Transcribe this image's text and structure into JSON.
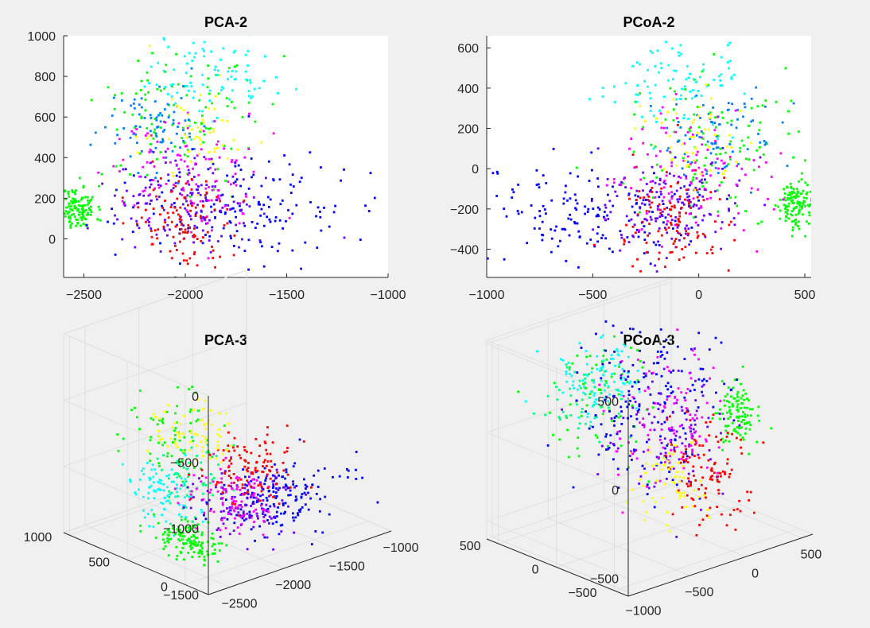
{
  "colors": {
    "figure_background": "#f0f0f0",
    "axes_background": "#ffffff",
    "axis": "#262626",
    "grid3d": "#dcdcdc",
    "palette": [
      "#00ff00",
      "#00ffff",
      "#0000ff",
      "#6600ff",
      "#ff00ff",
      "#ff0000",
      "#ffff00",
      "#00ff80",
      "#0080ff"
    ]
  },
  "chart_data": [
    {
      "id": "pca2",
      "type": "scatter",
      "title": "PCA-2",
      "xlim": [
        -2600,
        -1000
      ],
      "ylim": [
        -190,
        1000
      ],
      "xticks": [
        -2500,
        -2000,
        -1500,
        -1000
      ],
      "yticks": [
        0,
        200,
        400,
        600,
        800,
        1000
      ],
      "marker": "point",
      "clusters": [
        {
          "color": "#00ff00",
          "center": [
            -2530,
            150
          ],
          "spread": [
            45,
            55
          ],
          "count": 130
        },
        {
          "color": "#00ff00",
          "center": [
            -2050,
            600
          ],
          "spread": [
            230,
            170
          ],
          "count": 110
        },
        {
          "color": "#00ffff",
          "center": [
            -1870,
            820
          ],
          "spread": [
            150,
            110
          ],
          "count": 90
        },
        {
          "color": "#0080ff",
          "center": [
            -2150,
            550
          ],
          "spread": [
            140,
            110
          ],
          "count": 80
        },
        {
          "color": "#0000ff",
          "center": [
            -1750,
            170
          ],
          "spread": [
            280,
            140
          ],
          "count": 160
        },
        {
          "color": "#6600ff",
          "center": [
            -2000,
            180
          ],
          "spread": [
            170,
            110
          ],
          "count": 150
        },
        {
          "color": "#ff00ff",
          "center": [
            -2000,
            330
          ],
          "spread": [
            170,
            140
          ],
          "count": 110
        },
        {
          "color": "#ff0000",
          "center": [
            -1980,
            80
          ],
          "spread": [
            130,
            120
          ],
          "count": 110
        },
        {
          "color": "#ffff00",
          "center": [
            -1950,
            500
          ],
          "spread": [
            140,
            120
          ],
          "count": 50
        }
      ]
    },
    {
      "id": "pcoa2",
      "type": "scatter",
      "title": "PCoA-2",
      "xlim": [
        -1000,
        530
      ],
      "ylim": [
        -540,
        660
      ],
      "xticks": [
        -1000,
        -500,
        0,
        500
      ],
      "yticks": [
        -400,
        -200,
        0,
        200,
        400,
        600
      ],
      "marker": "point",
      "clusters": [
        {
          "color": "#00ff00",
          "center": [
            455,
            -180
          ],
          "spread": [
            45,
            60
          ],
          "count": 130
        },
        {
          "color": "#00ff00",
          "center": [
            40,
            120
          ],
          "spread": [
            230,
            180
          ],
          "count": 110
        },
        {
          "color": "#00ffff",
          "center": [
            -110,
            430
          ],
          "spread": [
            150,
            110
          ],
          "count": 90
        },
        {
          "color": "#0080ff",
          "center": [
            100,
            150
          ],
          "spread": [
            140,
            120
          ],
          "count": 80
        },
        {
          "color": "#0000ff",
          "center": [
            -480,
            -220
          ],
          "spread": [
            280,
            130
          ],
          "count": 160
        },
        {
          "color": "#6600ff",
          "center": [
            -120,
            -180
          ],
          "spread": [
            170,
            110
          ],
          "count": 150
        },
        {
          "color": "#ff00ff",
          "center": [
            -60,
            -20
          ],
          "spread": [
            170,
            140
          ],
          "count": 110
        },
        {
          "color": "#ff0000",
          "center": [
            -140,
            -270
          ],
          "spread": [
            130,
            120
          ],
          "count": 110
        },
        {
          "color": "#ffff00",
          "center": [
            -20,
            150
          ],
          "spread": [
            140,
            120
          ],
          "count": 50
        }
      ]
    },
    {
      "id": "pca3",
      "type": "scatter3d",
      "title": "PCA-3",
      "xlim": [
        -2700,
        -1000
      ],
      "ylim": [
        -200,
        1050
      ],
      "zlim": [
        -1500,
        0
      ],
      "xticks": [
        -2500,
        -2000,
        -1500,
        -1000
      ],
      "yticks": [
        0,
        500,
        1000
      ],
      "zticks": [
        -1500,
        -1000,
        -500,
        0
      ],
      "marker": "point",
      "clusters": [
        {
          "color": "#00ff00",
          "center": [
            -2500,
            150,
            -1280
          ],
          "spread": [
            70,
            120,
            60
          ],
          "count": 140
        },
        {
          "color": "#00ff00",
          "center": [
            -2200,
            600,
            -780
          ],
          "spread": [
            150,
            150,
            130
          ],
          "count": 70
        },
        {
          "color": "#00ffff",
          "center": [
            -2400,
            450,
            -1050
          ],
          "spread": [
            120,
            120,
            110
          ],
          "count": 90
        },
        {
          "color": "#00ff80",
          "center": [
            -2250,
            400,
            -1000
          ],
          "spread": [
            150,
            120,
            130
          ],
          "count": 60
        },
        {
          "color": "#0000ff",
          "center": [
            -1700,
            100,
            -1150
          ],
          "spread": [
            260,
            110,
            120
          ],
          "count": 160
        },
        {
          "color": "#6600ff",
          "center": [
            -1950,
            200,
            -1180
          ],
          "spread": [
            180,
            120,
            120
          ],
          "count": 120
        },
        {
          "color": "#ff00ff",
          "center": [
            -2000,
            250,
            -1150
          ],
          "spread": [
            150,
            130,
            120
          ],
          "count": 90
        },
        {
          "color": "#ff0000",
          "center": [
            -1950,
            150,
            -900
          ],
          "spread": [
            150,
            110,
            130
          ],
          "count": 110
        },
        {
          "color": "#ffff00",
          "center": [
            -2050,
            500,
            -750
          ],
          "spread": [
            150,
            120,
            110
          ],
          "count": 70
        }
      ]
    },
    {
      "id": "pcoa3",
      "type": "scatter3d",
      "title": "PCoA-3",
      "xlim": [
        -1050,
        600
      ],
      "ylim": [
        -620,
        600
      ],
      "zlim": [
        -600,
        520
      ],
      "xticks": [
        -1000,
        -500,
        0,
        500
      ],
      "yticks": [
        -500,
        0,
        500
      ],
      "zticks": [
        -500,
        0,
        500
      ],
      "marker": "point",
      "clusters": [
        {
          "color": "#00ff00",
          "center": [
            420,
            -150,
            0
          ],
          "spread": [
            60,
            70,
            80
          ],
          "count": 110
        },
        {
          "color": "#00ff00",
          "center": [
            -300,
            300,
            100
          ],
          "spread": [
            200,
            150,
            180
          ],
          "count": 70
        },
        {
          "color": "#00ffff",
          "center": [
            -400,
            250,
            260
          ],
          "spread": [
            150,
            120,
            120
          ],
          "count": 90
        },
        {
          "color": "#00ff80",
          "center": [
            -500,
            300,
            150
          ],
          "spread": [
            150,
            120,
            120
          ],
          "count": 50
        },
        {
          "color": "#0000ff",
          "center": [
            -150,
            100,
            100
          ],
          "spread": [
            260,
            200,
            220
          ],
          "count": 170
        },
        {
          "color": "#6600ff",
          "center": [
            -100,
            -50,
            -50
          ],
          "spread": [
            200,
            150,
            180
          ],
          "count": 110
        },
        {
          "color": "#ff00ff",
          "center": [
            0,
            0,
            0
          ],
          "spread": [
            200,
            150,
            180
          ],
          "count": 100
        },
        {
          "color": "#ff0000",
          "center": [
            50,
            -250,
            -250
          ],
          "spread": [
            150,
            120,
            150
          ],
          "count": 110
        },
        {
          "color": "#ffff00",
          "center": [
            -200,
            -150,
            -250
          ],
          "spread": [
            150,
            120,
            120
          ],
          "count": 60
        }
      ]
    }
  ]
}
